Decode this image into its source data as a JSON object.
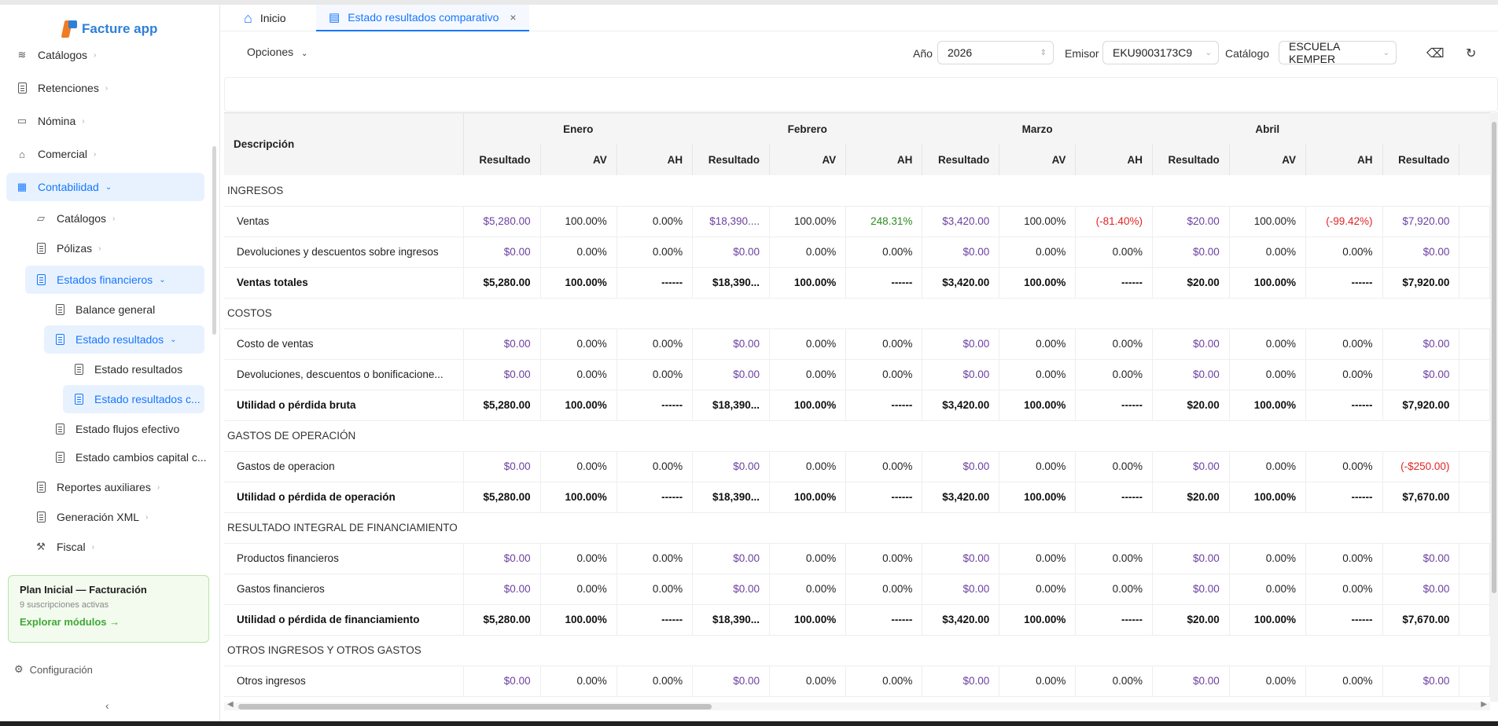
{
  "app": {
    "name": "Facture app"
  },
  "sidebar": {
    "items": [
      {
        "label": "Catálogos",
        "icon": "layers-icon"
      },
      {
        "label": "Retenciones",
        "icon": "document-icon"
      },
      {
        "label": "Nómina",
        "icon": "id-card-icon"
      },
      {
        "label": "Comercial",
        "icon": "store-icon"
      },
      {
        "label": "Contabilidad",
        "icon": "calculator-icon"
      },
      {
        "label": "Catálogos",
        "icon": "folder-icon"
      },
      {
        "label": "Pólizas",
        "icon": "document-icon"
      },
      {
        "label": "Estados financieros",
        "icon": "document-icon"
      },
      {
        "label": "Balance general",
        "icon": "document-icon"
      },
      {
        "label": "Estado resultados",
        "icon": "document-icon"
      },
      {
        "label": "Estado resultados",
        "icon": "document-icon"
      },
      {
        "label": "Estado resultados c...",
        "icon": "document-icon"
      },
      {
        "label": "Estado flujos efectivo",
        "icon": "document-icon"
      },
      {
        "label": "Estado cambios capital c...",
        "icon": "document-icon"
      },
      {
        "label": "Reportes auxiliares",
        "icon": "document-icon"
      },
      {
        "label": "Generación XML",
        "icon": "document-icon"
      },
      {
        "label": "Fiscal",
        "icon": "hammer-icon"
      }
    ],
    "plan": {
      "title": "Plan Inicial — Facturación",
      "subtitle": "9 suscripciones activas",
      "link": "Explorar módulos →"
    },
    "settings": "Configuración",
    "collapse": "‹"
  },
  "tabs": [
    {
      "label": "Inicio",
      "icon": "home-icon"
    },
    {
      "label": "Estado resultados comparativo",
      "icon": "table-icon",
      "close": "×"
    }
  ],
  "toolbar": {
    "options": "Opciones",
    "year_label": "Año",
    "year_value": "2026",
    "emisor_label": "Emisor",
    "emisor_value": "EKU9003173C9",
    "catalogo_label": "Catálogo",
    "catalogo_value": "ESCUELA KEMPER"
  },
  "table": {
    "desc_header": "Descripción",
    "months": [
      "Enero",
      "Febrero",
      "Marzo",
      "Abril"
    ],
    "sub_headers": [
      "Resultado",
      "AV",
      "AH"
    ],
    "last_sub": "Resultado",
    "rows": [
      {
        "type": "section",
        "label": "INGRESOS"
      },
      {
        "type": "row",
        "label": "Ventas",
        "cells": [
          "$5,280.00",
          "100.00%",
          "0.00%",
          "$18,390....",
          "100.00%",
          "248.31%",
          "$3,420.00",
          "100.00%",
          "(-81.40%)",
          "$20.00",
          "100.00%",
          "(-99.42%)",
          "$7,920.00"
        ]
      },
      {
        "type": "row",
        "label": "Devoluciones y descuentos sobre ingresos",
        "cells": [
          "$0.00",
          "0.00%",
          "0.00%",
          "$0.00",
          "0.00%",
          "0.00%",
          "$0.00",
          "0.00%",
          "0.00%",
          "$0.00",
          "0.00%",
          "0.00%",
          "$0.00"
        ]
      },
      {
        "type": "total",
        "label": "Ventas totales",
        "cells": [
          "$5,280.00",
          "100.00%",
          "------",
          "$18,390...",
          "100.00%",
          "------",
          "$3,420.00",
          "100.00%",
          "------",
          "$20.00",
          "100.00%",
          "------",
          "$7,920.00"
        ]
      },
      {
        "type": "section",
        "label": "COSTOS"
      },
      {
        "type": "row",
        "label": "Costo de ventas",
        "cells": [
          "$0.00",
          "0.00%",
          "0.00%",
          "$0.00",
          "0.00%",
          "0.00%",
          "$0.00",
          "0.00%",
          "0.00%",
          "$0.00",
          "0.00%",
          "0.00%",
          "$0.00"
        ]
      },
      {
        "type": "row",
        "label": "Devoluciones, descuentos o bonificacione...",
        "cells": [
          "$0.00",
          "0.00%",
          "0.00%",
          "$0.00",
          "0.00%",
          "0.00%",
          "$0.00",
          "0.00%",
          "0.00%",
          "$0.00",
          "0.00%",
          "0.00%",
          "$0.00"
        ]
      },
      {
        "type": "total",
        "label": "Utilidad o pérdida bruta",
        "cells": [
          "$5,280.00",
          "100.00%",
          "------",
          "$18,390...",
          "100.00%",
          "------",
          "$3,420.00",
          "100.00%",
          "------",
          "$20.00",
          "100.00%",
          "------",
          "$7,920.00"
        ]
      },
      {
        "type": "section",
        "label": "GASTOS DE OPERACIÓN"
      },
      {
        "type": "row",
        "label": "Gastos de operacion",
        "cells": [
          "$0.00",
          "0.00%",
          "0.00%",
          "$0.00",
          "0.00%",
          "0.00%",
          "$0.00",
          "0.00%",
          "0.00%",
          "$0.00",
          "0.00%",
          "0.00%",
          "(-$250.00)"
        ]
      },
      {
        "type": "total",
        "label": "Utilidad o pérdida de operación",
        "cells": [
          "$5,280.00",
          "100.00%",
          "------",
          "$18,390...",
          "100.00%",
          "------",
          "$3,420.00",
          "100.00%",
          "------",
          "$20.00",
          "100.00%",
          "------",
          "$7,670.00"
        ]
      },
      {
        "type": "section",
        "label": "RESULTADO INTEGRAL DE FINANCIAMIENTO"
      },
      {
        "type": "row",
        "label": "Productos financieros",
        "cells": [
          "$0.00",
          "0.00%",
          "0.00%",
          "$0.00",
          "0.00%",
          "0.00%",
          "$0.00",
          "0.00%",
          "0.00%",
          "$0.00",
          "0.00%",
          "0.00%",
          "$0.00"
        ]
      },
      {
        "type": "row",
        "label": "Gastos financieros",
        "cells": [
          "$0.00",
          "0.00%",
          "0.00%",
          "$0.00",
          "0.00%",
          "0.00%",
          "$0.00",
          "0.00%",
          "0.00%",
          "$0.00",
          "0.00%",
          "0.00%",
          "$0.00"
        ]
      },
      {
        "type": "total",
        "label": "Utilidad o pérdida de financiamiento",
        "cells": [
          "$5,280.00",
          "100.00%",
          "------",
          "$18,390...",
          "100.00%",
          "------",
          "$3,420.00",
          "100.00%",
          "------",
          "$20.00",
          "100.00%",
          "------",
          "$7,670.00"
        ]
      },
      {
        "type": "section",
        "label": "OTROS INGRESOS Y OTROS GASTOS"
      },
      {
        "type": "row",
        "label": "Otros ingresos",
        "cells": [
          "$0.00",
          "0.00%",
          "0.00%",
          "$0.00",
          "0.00%",
          "0.00%",
          "$0.00",
          "0.00%",
          "0.00%",
          "$0.00",
          "0.00%",
          "0.00%",
          "$0.00"
        ]
      }
    ]
  },
  "colors": {
    "accent": "#1677ff",
    "money": "#6b3fa0",
    "negative": "#e02424",
    "positive": "#2e8b22",
    "brand_orange": "#f07b25"
  }
}
